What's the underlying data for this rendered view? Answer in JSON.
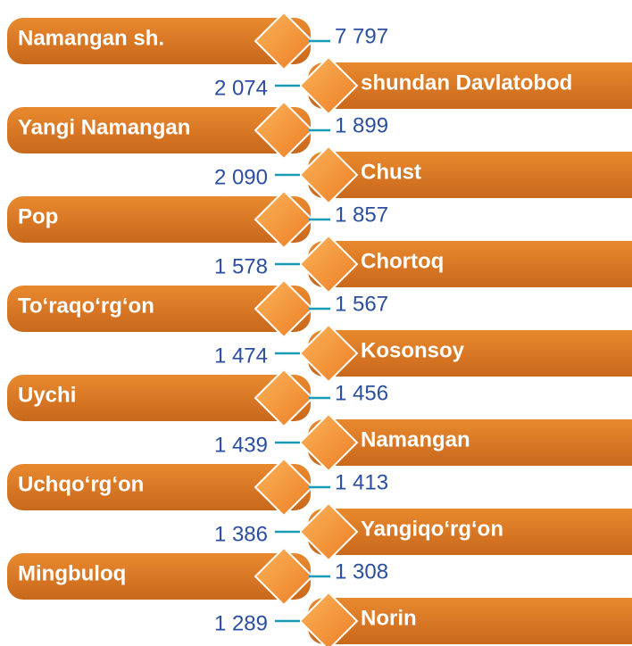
{
  "items": [
    {
      "name": "Namangan sh.",
      "value": "7 797"
    },
    {
      "name": "shundan Davlatobod",
      "value": "2 074"
    },
    {
      "name": "Yangi Namangan",
      "value": "1 899"
    },
    {
      "name": "Chust",
      "value": "2 090"
    },
    {
      "name": "Pop",
      "value": "1 857"
    },
    {
      "name": "Chortoq",
      "value": "1 578"
    },
    {
      "name": "To‘raqo‘rg‘on",
      "value": "1 567"
    },
    {
      "name": "Kosonsoy",
      "value": "1 474"
    },
    {
      "name": "Uychi",
      "value": "1 456"
    },
    {
      "name": "Namangan",
      "value": "1 439"
    },
    {
      "name": "Uchqo‘rg‘on",
      "value": "1 413"
    },
    {
      "name": "Yangiqo‘rg‘on",
      "value": "1 386"
    },
    {
      "name": "Mingbuloq",
      "value": "1 308"
    },
    {
      "name": "Norin",
      "value": "1 289"
    }
  ]
}
